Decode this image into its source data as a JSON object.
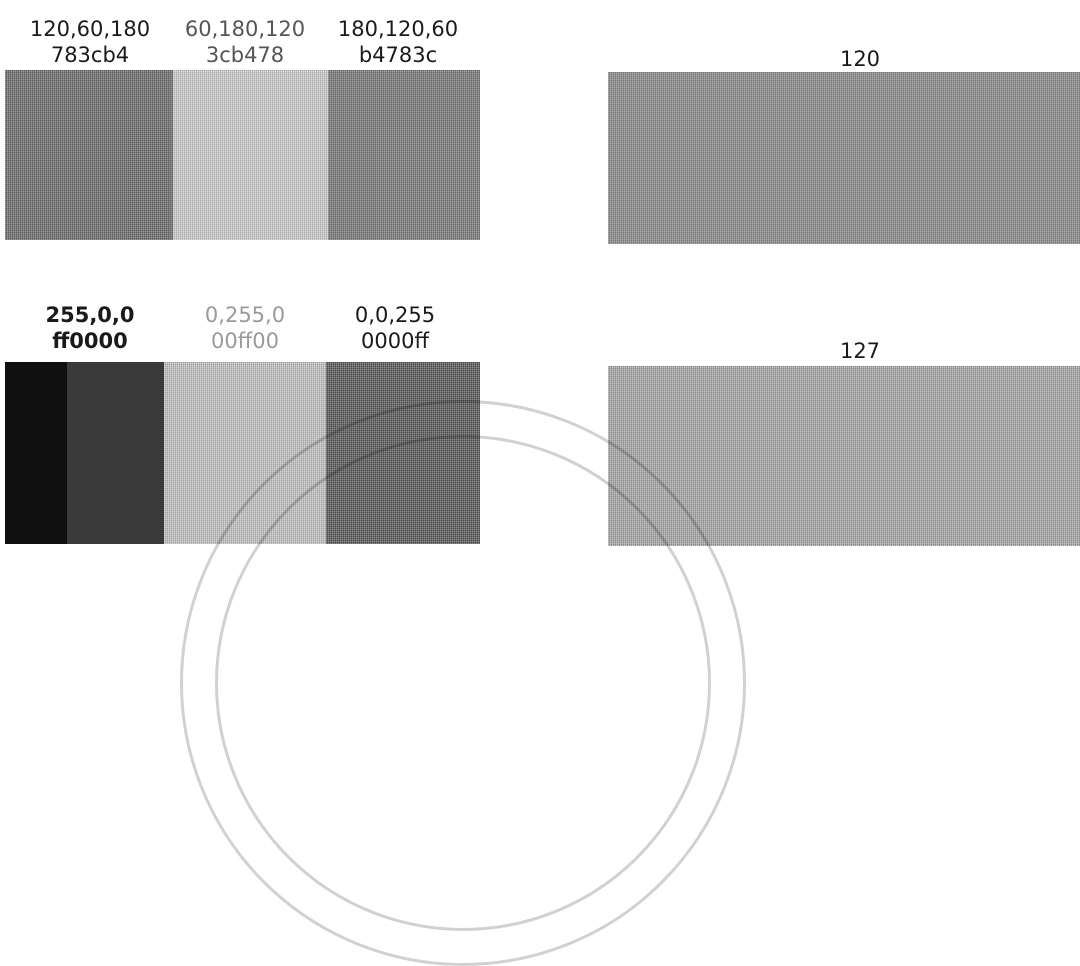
{
  "top_row": {
    "swatch_1": {
      "rgb": "120,60,180",
      "hex": "783cb4"
    },
    "swatch_2": {
      "rgb": "60,180,120",
      "hex": "3cb478"
    },
    "swatch_3": {
      "rgb": "180,120,60",
      "hex": "b4783c"
    },
    "gray_value": "120"
  },
  "bottom_row": {
    "swatch_1": {
      "rgb": "255,0,0",
      "hex": "ff0000"
    },
    "swatch_2": {
      "rgb": "0,255,0",
      "hex": "00ff00"
    },
    "swatch_3": {
      "rgb": "0,0,255",
      "hex": "0000ff"
    },
    "gray_value": "127"
  }
}
